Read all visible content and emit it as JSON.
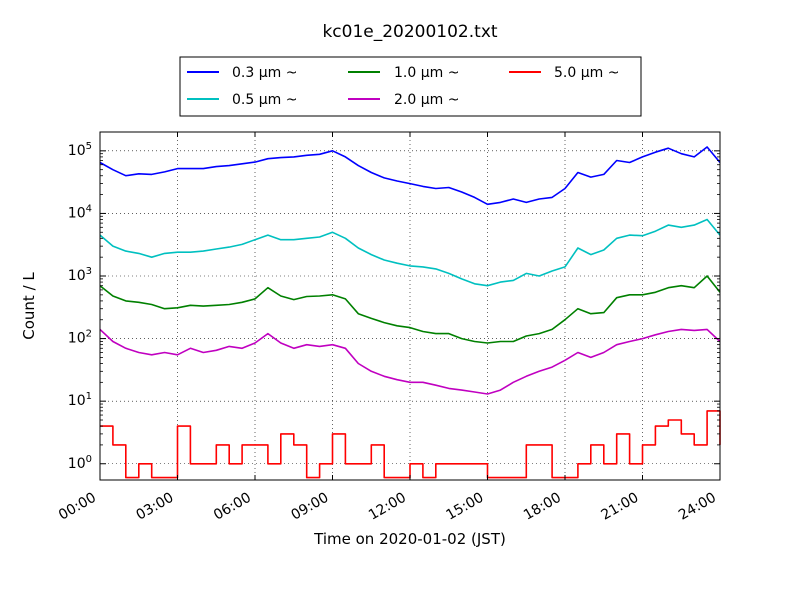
{
  "chart_data": {
    "type": "line",
    "title": "kc01e_20200102.txt",
    "xlabel": "Time on 2020-01-02 (JST)",
    "ylabel": "Count / L",
    "yscale": "log",
    "ylim": [
      0.55,
      200000
    ],
    "xlim": [
      "2020-01-02 00:00",
      "2020-01-03 00:00"
    ],
    "x_ticks": [
      "00:00",
      "03:00",
      "06:00",
      "09:00",
      "12:00",
      "15:00",
      "18:00",
      "21:00",
      "24:00"
    ],
    "y_ticks": [
      {
        "value": 1,
        "base": "10",
        "exp": "0"
      },
      {
        "value": 10,
        "base": "10",
        "exp": "1"
      },
      {
        "value": 100,
        "base": "10",
        "exp": "2"
      },
      {
        "value": 1000,
        "base": "10",
        "exp": "3"
      },
      {
        "value": 10000,
        "base": "10",
        "exp": "4"
      },
      {
        "value": 100000,
        "base": "10",
        "exp": "5"
      }
    ],
    "grid": true,
    "legend_position": "top-center",
    "x_hours": [
      0,
      0.5,
      1,
      1.5,
      2,
      2.5,
      3,
      3.5,
      4,
      4.5,
      5,
      5.5,
      6,
      6.5,
      7,
      7.5,
      8,
      8.5,
      9,
      9.5,
      10,
      10.5,
      11,
      11.5,
      12,
      12.5,
      13,
      13.5,
      14,
      14.5,
      15,
      15.5,
      16,
      16.5,
      17,
      17.5,
      18,
      18.5,
      19,
      19.5,
      20,
      20.5,
      21,
      21.5,
      22,
      22.5,
      23,
      23.5,
      24
    ],
    "series": [
      {
        "name": "0.3 µm ~",
        "color": "#0000ff",
        "values": [
          65000,
          50000,
          40000,
          43000,
          42000,
          46000,
          52000,
          52000,
          52000,
          56000,
          58000,
          62000,
          66000,
          75000,
          78000,
          80000,
          85000,
          88000,
          100000,
          80000,
          58000,
          45000,
          37000,
          33000,
          30000,
          27000,
          25000,
          26000,
          22000,
          18000,
          14000,
          15000,
          17000,
          15000,
          17000,
          18000,
          25000,
          45000,
          38000,
          42000,
          70000,
          65000,
          80000,
          95000,
          110000,
          90000,
          80000,
          115000,
          65000
        ]
      },
      {
        "name": "0.5 µm ~",
        "color": "#00c0c0",
        "values": [
          4500,
          3000,
          2500,
          2300,
          2000,
          2300,
          2400,
          2400,
          2500,
          2700,
          2900,
          3200,
          3800,
          4500,
          3800,
          3800,
          4000,
          4200,
          5000,
          4000,
          2800,
          2200,
          1800,
          1600,
          1450,
          1400,
          1300,
          1100,
          900,
          750,
          700,
          800,
          850,
          1100,
          1000,
          1200,
          1400,
          2800,
          2200,
          2600,
          4000,
          4500,
          4400,
          5200,
          6500,
          6000,
          6500,
          8000,
          4500
        ]
      },
      {
        "name": "1.0 µm ~",
        "color": "#008000",
        "values": [
          700,
          480,
          400,
          380,
          350,
          300,
          310,
          340,
          330,
          340,
          350,
          380,
          430,
          650,
          480,
          420,
          470,
          480,
          500,
          430,
          250,
          210,
          180,
          160,
          150,
          130,
          120,
          120,
          100,
          90,
          85,
          90,
          90,
          110,
          120,
          140,
          200,
          300,
          250,
          260,
          450,
          500,
          500,
          550,
          650,
          700,
          650,
          1000,
          550
        ]
      },
      {
        "name": "2.0 µm ~",
        "color": "#c000c0",
        "values": [
          140,
          90,
          70,
          60,
          55,
          60,
          55,
          70,
          60,
          65,
          75,
          70,
          85,
          120,
          85,
          70,
          80,
          75,
          80,
          70,
          40,
          30,
          25,
          22,
          20,
          20,
          18,
          16,
          15,
          14,
          13,
          15,
          20,
          25,
          30,
          35,
          45,
          60,
          50,
          60,
          80,
          90,
          100,
          115,
          130,
          140,
          135,
          140,
          90
        ]
      },
      {
        "name": "5.0 µm ~",
        "color": "#ff0000",
        "values": [
          4,
          2,
          0.6,
          1,
          0.6,
          0.6,
          4,
          1,
          1,
          2,
          1,
          2,
          2,
          1,
          3,
          2,
          0.6,
          1,
          3,
          1,
          1,
          2,
          0.6,
          0.6,
          1,
          0.6,
          1,
          1,
          1,
          1,
          0.6,
          0.6,
          0.6,
          2,
          2,
          0.6,
          0.6,
          1,
          2,
          1,
          3,
          1,
          2,
          4,
          5,
          3,
          2,
          7,
          2
        ]
      }
    ]
  }
}
